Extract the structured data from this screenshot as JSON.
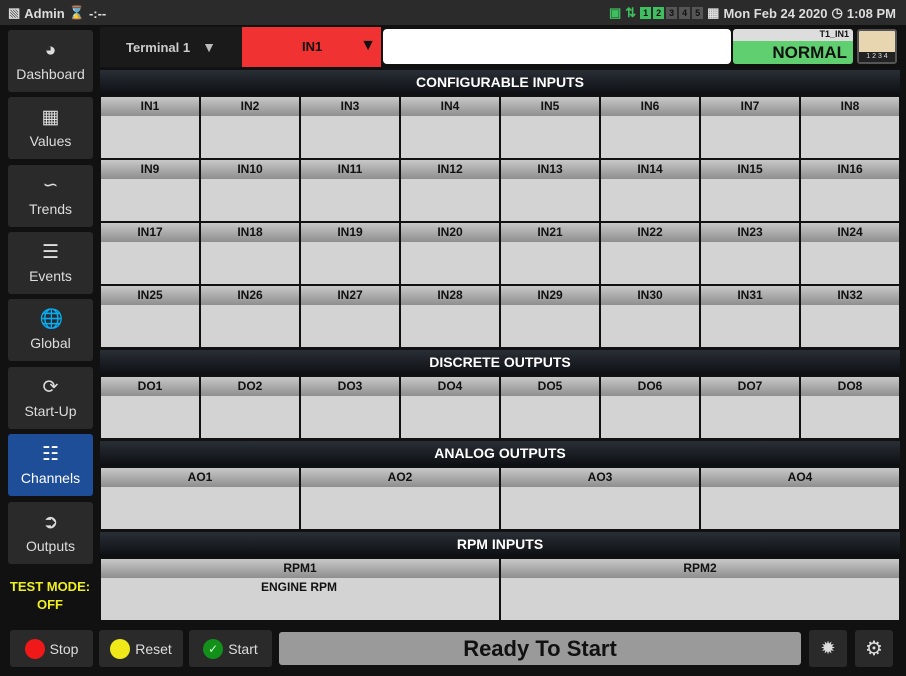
{
  "topbar": {
    "user": "Admin",
    "timer": "-:--",
    "channels": [
      "1",
      "2",
      "3",
      "4",
      "5"
    ],
    "active_channels": [
      0,
      1
    ],
    "date": "Mon Feb 24 2020",
    "time": "1:08 PM"
  },
  "sidebar": {
    "items": [
      {
        "label": "Dashboard",
        "icon": "gauge-icon"
      },
      {
        "label": "Values",
        "icon": "table-icon"
      },
      {
        "label": "Trends",
        "icon": "chart-icon"
      },
      {
        "label": "Events",
        "icon": "list-icon"
      },
      {
        "label": "Global",
        "icon": "globe-icon"
      },
      {
        "label": "Start-Up",
        "icon": "refresh-icon"
      },
      {
        "label": "Channels",
        "icon": "sliders-icon",
        "active": true
      },
      {
        "label": "Outputs",
        "icon": "output-icon"
      }
    ],
    "test_mode_label": "TEST MODE:",
    "test_mode_value": "OFF"
  },
  "header": {
    "terminal": "Terminal 1",
    "input": "IN1",
    "input_color": "#f03232",
    "text_value": "",
    "status_tag": "T1_IN1",
    "status": "NORMAL",
    "status_color": "#5fcf6f",
    "terminal_icon_labels": "1 2 3 4"
  },
  "sections": [
    {
      "title": "CONFIGURABLE INPUTS",
      "cols": 8,
      "cells": [
        {
          "label": "IN1"
        },
        {
          "label": "IN2"
        },
        {
          "label": "IN3"
        },
        {
          "label": "IN4"
        },
        {
          "label": "IN5"
        },
        {
          "label": "IN6"
        },
        {
          "label": "IN7"
        },
        {
          "label": "IN8"
        },
        {
          "label": "IN9"
        },
        {
          "label": "IN10"
        },
        {
          "label": "IN11"
        },
        {
          "label": "IN12"
        },
        {
          "label": "IN13"
        },
        {
          "label": "IN14"
        },
        {
          "label": "IN15"
        },
        {
          "label": "IN16"
        },
        {
          "label": "IN17"
        },
        {
          "label": "IN18"
        },
        {
          "label": "IN19"
        },
        {
          "label": "IN20"
        },
        {
          "label": "IN21"
        },
        {
          "label": "IN22"
        },
        {
          "label": "IN23"
        },
        {
          "label": "IN24"
        },
        {
          "label": "IN25"
        },
        {
          "label": "IN26"
        },
        {
          "label": "IN27"
        },
        {
          "label": "IN28"
        },
        {
          "label": "IN29"
        },
        {
          "label": "IN30"
        },
        {
          "label": "IN31"
        },
        {
          "label": "IN32"
        }
      ]
    },
    {
      "title": "DISCRETE OUTPUTS",
      "cols": 8,
      "cells": [
        {
          "label": "DO1"
        },
        {
          "label": "DO2"
        },
        {
          "label": "DO3"
        },
        {
          "label": "DO4"
        },
        {
          "label": "DO5"
        },
        {
          "label": "DO6"
        },
        {
          "label": "DO7"
        },
        {
          "label": "DO8"
        }
      ]
    },
    {
      "title": "ANALOG OUTPUTS",
      "cols": 4,
      "cells": [
        {
          "label": "AO1"
        },
        {
          "label": "AO2"
        },
        {
          "label": "AO3"
        },
        {
          "label": "AO4"
        }
      ]
    },
    {
      "title": "RPM INPUTS",
      "cols": 2,
      "cells": [
        {
          "label": "RPM1",
          "value": "ENGINE RPM"
        },
        {
          "label": "RPM2"
        }
      ]
    }
  ],
  "footer": {
    "stop": "Stop",
    "reset": "Reset",
    "start": "Start",
    "status": "Ready To Start"
  }
}
